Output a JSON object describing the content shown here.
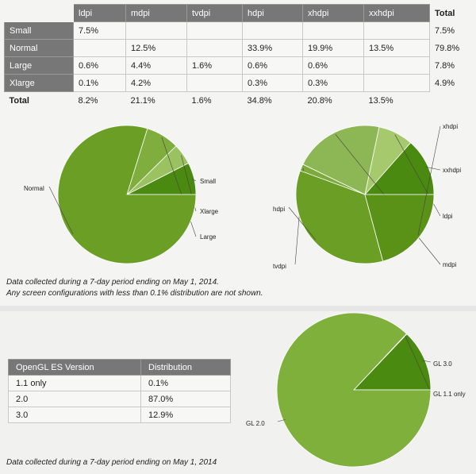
{
  "screen_table": {
    "columns": [
      "ldpi",
      "mdpi",
      "tvdpi",
      "hdpi",
      "xhdpi",
      "xxhdpi"
    ],
    "total_label": "Total",
    "rows": [
      {
        "label": "Small",
        "cells": [
          "7.5%",
          "",
          "",
          "",
          "",
          ""
        ],
        "total": "7.5%"
      },
      {
        "label": "Normal",
        "cells": [
          "",
          "12.5%",
          "",
          "33.9%",
          "19.9%",
          "13.5%"
        ],
        "total": "79.8%"
      },
      {
        "label": "Large",
        "cells": [
          "0.6%",
          "4.4%",
          "1.6%",
          "0.6%",
          "0.6%",
          ""
        ],
        "total": "7.8%"
      },
      {
        "label": "Xlarge",
        "cells": [
          "0.1%",
          "4.2%",
          "",
          "0.3%",
          "0.3%",
          ""
        ],
        "total": "4.9%"
      }
    ],
    "totals_row": {
      "label": "Total",
      "cells": [
        "8.2%",
        "21.1%",
        "1.6%",
        "34.8%",
        "20.8%",
        "13.5%"
      ]
    }
  },
  "chart_data": [
    {
      "type": "pie",
      "id": "screen-size",
      "slices": [
        {
          "label": "Small",
          "value": 7.5,
          "color": "#4a8a10"
        },
        {
          "label": "Xlarge",
          "value": 4.9,
          "color": "#9bc260"
        },
        {
          "label": "Large",
          "value": 7.8,
          "color": "#7fad3e"
        },
        {
          "label": "Normal",
          "value": 79.8,
          "color": "#6b9e25"
        }
      ]
    },
    {
      "type": "pie",
      "id": "screen-density",
      "slices": [
        {
          "label": "xxhdpi",
          "value": 13.5,
          "color": "#4a8a10"
        },
        {
          "label": "ldpi",
          "value": 8.2,
          "color": "#a6c96e"
        },
        {
          "label": "mdpi",
          "value": 21.1,
          "color": "#8db654"
        },
        {
          "label": "tvdpi",
          "value": 1.6,
          "color": "#7ea93c"
        },
        {
          "label": "hdpi",
          "value": 34.8,
          "color": "#6b9e25"
        },
        {
          "label": "xhdpi",
          "value": 20.8,
          "color": "#5a9218"
        }
      ]
    },
    {
      "type": "pie",
      "id": "opengl",
      "slices": [
        {
          "label": "GL 3.0",
          "value": 12.9,
          "color": "#4a8a10"
        },
        {
          "label": "GL 1.1 only",
          "value": 0.1,
          "color": "#5d9a1c"
        },
        {
          "label": "GL 2.0",
          "value": 87.0,
          "color": "#7fb03c"
        }
      ]
    }
  ],
  "notes": {
    "line1": "Data collected during a 7-day period ending on May 1, 2014.",
    "line2": "Any screen configurations with less than 0.1% distribution are not shown.",
    "gl_note": "Data collected during a 7-day period ending on May 1, 2014"
  },
  "gl_table": {
    "headers": [
      "OpenGL ES Version",
      "Distribution"
    ],
    "rows": [
      {
        "version": "1.1 only",
        "dist": "0.1%"
      },
      {
        "version": "2.0",
        "dist": "87.0%"
      },
      {
        "version": "3.0",
        "dist": "12.9%"
      }
    ]
  }
}
